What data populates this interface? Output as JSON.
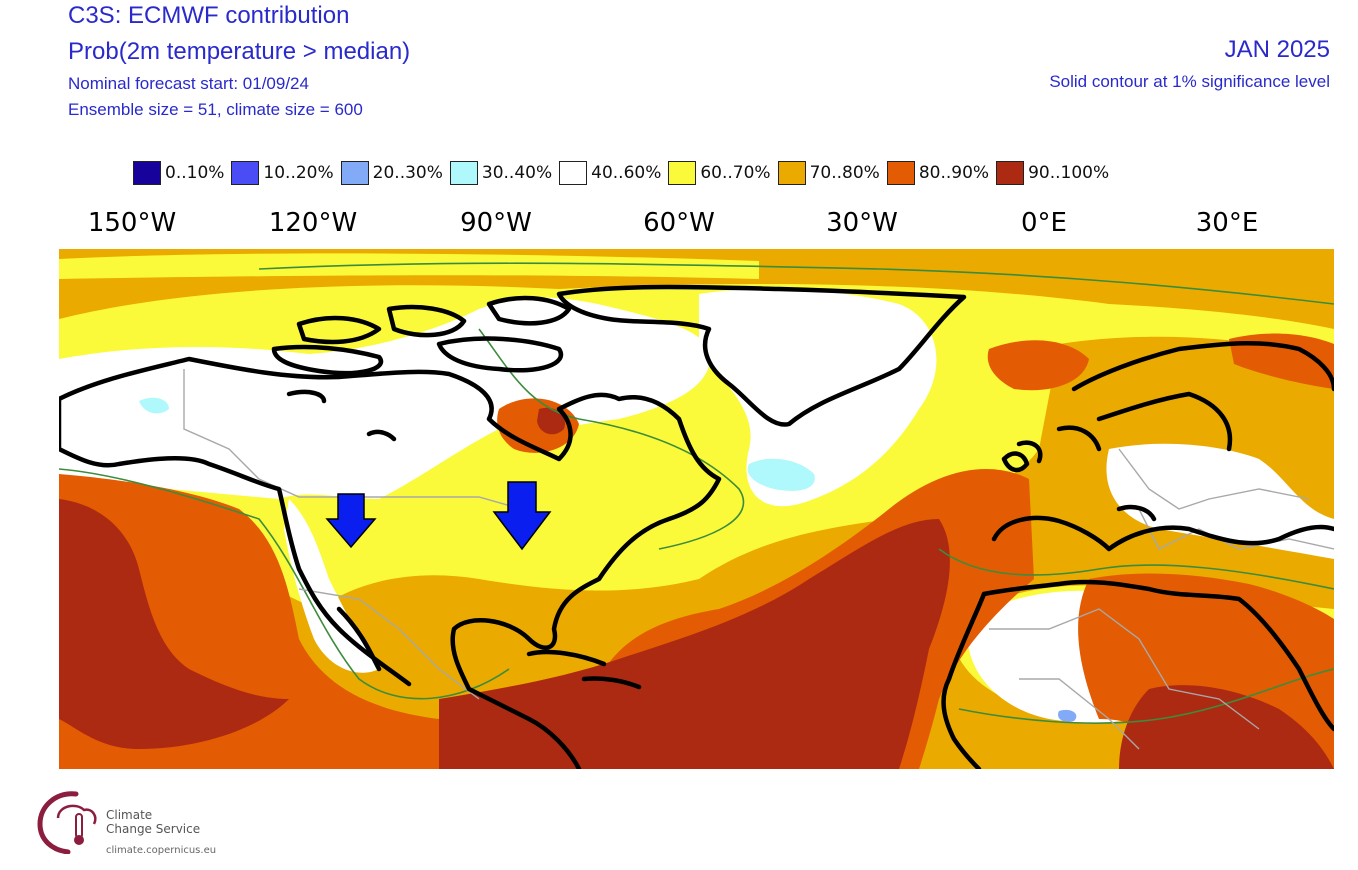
{
  "header": {
    "title": "C3S: ECMWF contribution",
    "subtitle": "Prob(2m temperature > median)",
    "forecast_start": "Nominal forecast start: 01/09/24",
    "ensemble": "Ensemble size = 51, climate size = 600",
    "valid_month": "JAN 2025",
    "significance": "Solid contour at 1% significance level"
  },
  "legend": [
    {
      "label": "0..10%",
      "color": "#17039b"
    },
    {
      "label": "10..20%",
      "color": "#4a4df5"
    },
    {
      "label": "20..30%",
      "color": "#82aaf6"
    },
    {
      "label": "30..40%",
      "color": "#aff8fb"
    },
    {
      "label": "40..60%",
      "color": "#ffffff"
    },
    {
      "label": "60..70%",
      "color": "#fafa3a"
    },
    {
      "label": "70..80%",
      "color": "#eaaa00"
    },
    {
      "label": "80..90%",
      "color": "#e35c03"
    },
    {
      "label": "90..100%",
      "color": "#ad2a12"
    }
  ],
  "longitude_labels": [
    "150°W",
    "120°W",
    "90°W",
    "60°W",
    "30°W",
    "0°E",
    "30°E"
  ],
  "annotations": [
    {
      "name": "arrow-west-us",
      "color": "#0a1ef0"
    },
    {
      "name": "arrow-great-lakes",
      "color": "#0a1ef0"
    }
  ],
  "logo": {
    "line1": "Climate",
    "line2": "Change Service",
    "url": "climate.copernicus.eu"
  }
}
